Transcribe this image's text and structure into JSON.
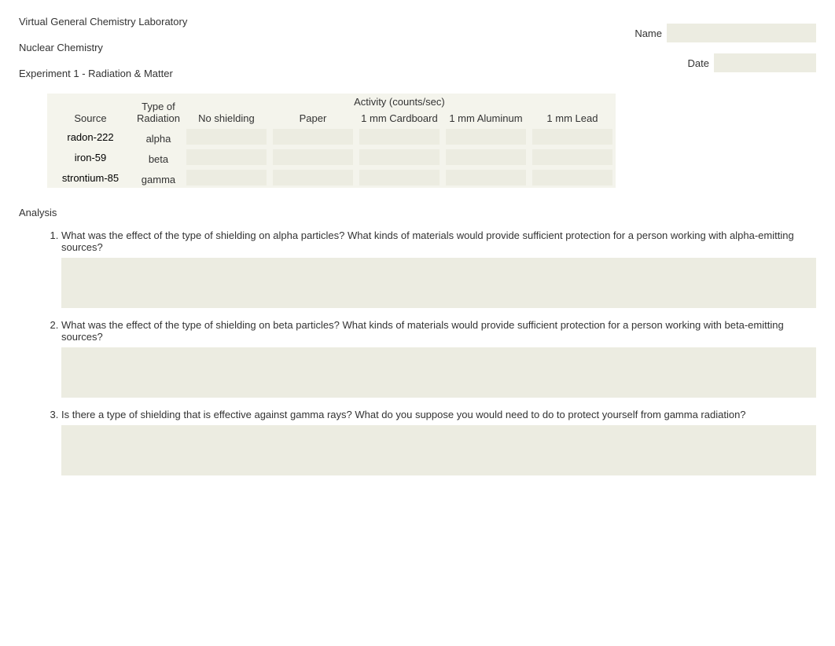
{
  "header": {
    "lab_title": "Virtual General Chemistry Laboratory",
    "section_title": "Nuclear Chemistry",
    "experiment_title": "Experiment 1 - Radiation & Matter",
    "name_label": "Name",
    "date_label": "Date",
    "name_value": "",
    "date_value": ""
  },
  "table": {
    "header_source": "Source",
    "header_type_line1": "Type of",
    "header_type_line2": "Radiation",
    "header_activity_span": "Activity (counts/sec)",
    "activity_cols": [
      "No shielding",
      "Paper",
      "1 mm Cardboard",
      "1 mm Aluminum",
      "1 mm Lead"
    ],
    "rows": [
      {
        "source": "radon-222",
        "radiation": "alpha",
        "values": [
          "",
          "",
          "",
          "",
          ""
        ]
      },
      {
        "source": "iron-59",
        "radiation": "beta",
        "values": [
          "",
          "",
          "",
          "",
          ""
        ]
      },
      {
        "source": "strontium-85",
        "radiation": "gamma",
        "values": [
          "",
          "",
          "",
          "",
          ""
        ]
      }
    ]
  },
  "analysis": {
    "heading": "Analysis",
    "questions": [
      {
        "text": "What was the effect of the type of shielding on alpha particles? What kinds of materials would provide sufficient protection for a person working with alpha-emitting sources?",
        "answer": ""
      },
      {
        "text": "What was the effect of the type of shielding on beta particles? What kinds of materials would provide sufficient protection for a person working with beta-emitting sources?",
        "answer": ""
      },
      {
        "text": "Is there a type of shielding that is effective against gamma rays? What do you suppose you would need to do to protect yourself from gamma radiation?",
        "answer": ""
      }
    ]
  },
  "colors": {
    "input_bg": "#ecece1",
    "table_bg": "#f4f4ec",
    "text": "#333333"
  }
}
